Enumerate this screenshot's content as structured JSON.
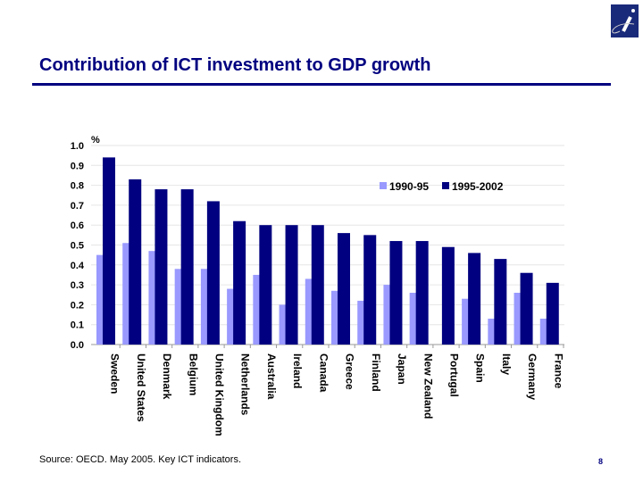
{
  "title": "Contribution of ICT investment to GDP growth",
  "source": "Source: OECD. May 2005.  Key ICT indicators.",
  "page_number": "8",
  "chart_data": {
    "type": "bar",
    "ylabel": "%",
    "ylim": [
      0,
      1.0
    ],
    "yticks": [
      "0.0",
      "0.1",
      "0.2",
      "0.3",
      "0.4",
      "0.5",
      "0.6",
      "0.7",
      "0.8",
      "0.9",
      "1.0"
    ],
    "grid": true,
    "legend": "top-right",
    "categories": [
      "Sweden",
      "United States",
      "Denmark",
      "Belgium",
      "United Kingdom",
      "Netherlands",
      "Australia",
      "Ireland",
      "Canada",
      "Greece",
      "Finland",
      "Japan",
      "New Zealand",
      "Portugal",
      "Spain",
      "Italy",
      "Germany",
      "France"
    ],
    "series": [
      {
        "name": "1990-95",
        "color": "#9999ff",
        "values": [
          0.45,
          0.51,
          0.47,
          0.38,
          0.38,
          0.28,
          0.35,
          0.2,
          0.33,
          0.27,
          0.22,
          0.3,
          0.26,
          null,
          0.23,
          0.13,
          0.26,
          0.13
        ]
      },
      {
        "name": "1995-2002",
        "color": "#000080",
        "values": [
          0.94,
          0.83,
          0.78,
          0.78,
          0.72,
          0.62,
          0.6,
          0.6,
          0.6,
          0.56,
          0.55,
          0.52,
          0.52,
          0.49,
          0.46,
          0.43,
          0.36,
          0.31
        ]
      }
    ]
  }
}
